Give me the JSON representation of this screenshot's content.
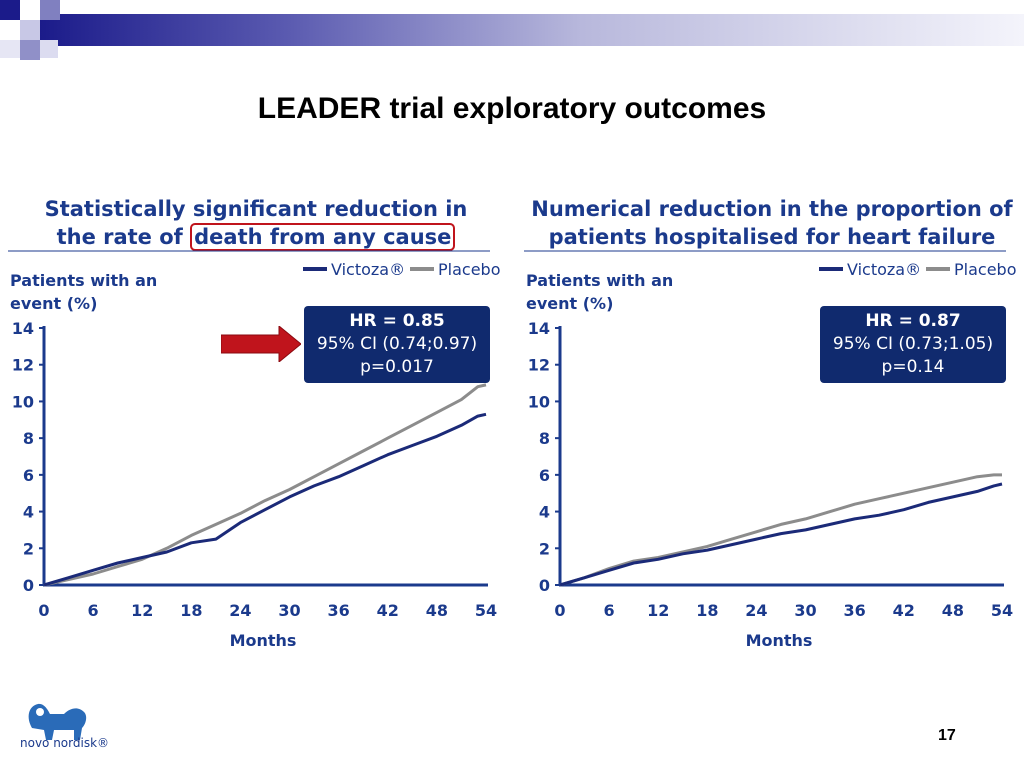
{
  "slide": {
    "title": "LEADER trial exploratory outcomes",
    "page_number": "17",
    "logo_text": "novo nordisk®"
  },
  "chart_data": [
    {
      "type": "line",
      "title_line1": "Statistically significant reduction in",
      "title_line2_prefix": "the rate of ",
      "title_line2_highlight": "death from any cause",
      "ylabel_line1": "Patients with an",
      "ylabel_line2": "event (%)",
      "xlabel": "Months",
      "xlim": [
        0,
        54
      ],
      "ylim": [
        0,
        14
      ],
      "xticks": [
        "0",
        "6",
        "12",
        "18",
        "24",
        "30",
        "36",
        "42",
        "48",
        "54"
      ],
      "yticks": [
        "0",
        "2",
        "4",
        "6",
        "8",
        "10",
        "12",
        "14"
      ],
      "legend_position": "top-right",
      "annotation": {
        "hr": "HR = 0.85",
        "ci": "95% CI (0.74;0.97)",
        "p": "p=0.017"
      },
      "series": [
        {
          "name": "Victoza®",
          "color": "#1b2a78",
          "x": [
            0,
            3,
            6,
            9,
            12,
            15,
            18,
            21,
            24,
            27,
            30,
            33,
            36,
            39,
            42,
            45,
            48,
            51,
            53,
            54
          ],
          "y": [
            0,
            0.4,
            0.8,
            1.2,
            1.5,
            1.8,
            2.3,
            2.5,
            3.4,
            4.1,
            4.8,
            5.4,
            5.9,
            6.5,
            7.1,
            7.6,
            8.1,
            8.7,
            9.2,
            9.3
          ]
        },
        {
          "name": "Placebo",
          "color": "#8c8c8c",
          "x": [
            0,
            3,
            6,
            9,
            12,
            15,
            18,
            21,
            24,
            27,
            30,
            33,
            36,
            39,
            42,
            45,
            48,
            51,
            53,
            54
          ],
          "y": [
            0,
            0.3,
            0.6,
            1.0,
            1.4,
            2.0,
            2.7,
            3.3,
            3.9,
            4.6,
            5.2,
            5.9,
            6.6,
            7.3,
            8.0,
            8.7,
            9.4,
            10.1,
            10.8,
            10.9
          ]
        }
      ]
    },
    {
      "type": "line",
      "title_line1": "Numerical reduction in the proportion of",
      "title_line2_prefix": "patients hospitalised for heart failure",
      "title_line2_highlight": "",
      "ylabel_line1": "Patients with an",
      "ylabel_line2": "event (%)",
      "xlabel": "Months",
      "xlim": [
        0,
        54
      ],
      "ylim": [
        0,
        14
      ],
      "xticks": [
        "0",
        "6",
        "12",
        "18",
        "24",
        "30",
        "36",
        "42",
        "48",
        "54"
      ],
      "yticks": [
        "0",
        "2",
        "4",
        "6",
        "8",
        "10",
        "12",
        "14"
      ],
      "legend_position": "top-right",
      "annotation": {
        "hr": "HR = 0.87",
        "ci": "95% CI (0.73;1.05)",
        "p": "p=0.14"
      },
      "series": [
        {
          "name": "Victoza®",
          "color": "#1b2a78",
          "x": [
            0,
            3,
            6,
            9,
            12,
            15,
            18,
            21,
            24,
            27,
            30,
            33,
            36,
            39,
            42,
            45,
            48,
            51,
            53,
            54
          ],
          "y": [
            0,
            0.4,
            0.8,
            1.2,
            1.4,
            1.7,
            1.9,
            2.2,
            2.5,
            2.8,
            3.0,
            3.3,
            3.6,
            3.8,
            4.1,
            4.5,
            4.8,
            5.1,
            5.4,
            5.5
          ]
        },
        {
          "name": "Placebo",
          "color": "#8c8c8c",
          "x": [
            0,
            3,
            6,
            9,
            12,
            15,
            18,
            21,
            24,
            27,
            30,
            33,
            36,
            39,
            42,
            45,
            48,
            51,
            53,
            54
          ],
          "y": [
            0,
            0.4,
            0.9,
            1.3,
            1.5,
            1.8,
            2.1,
            2.5,
            2.9,
            3.3,
            3.6,
            4.0,
            4.4,
            4.7,
            5.0,
            5.3,
            5.6,
            5.9,
            6.0,
            6.0
          ]
        }
      ]
    }
  ]
}
